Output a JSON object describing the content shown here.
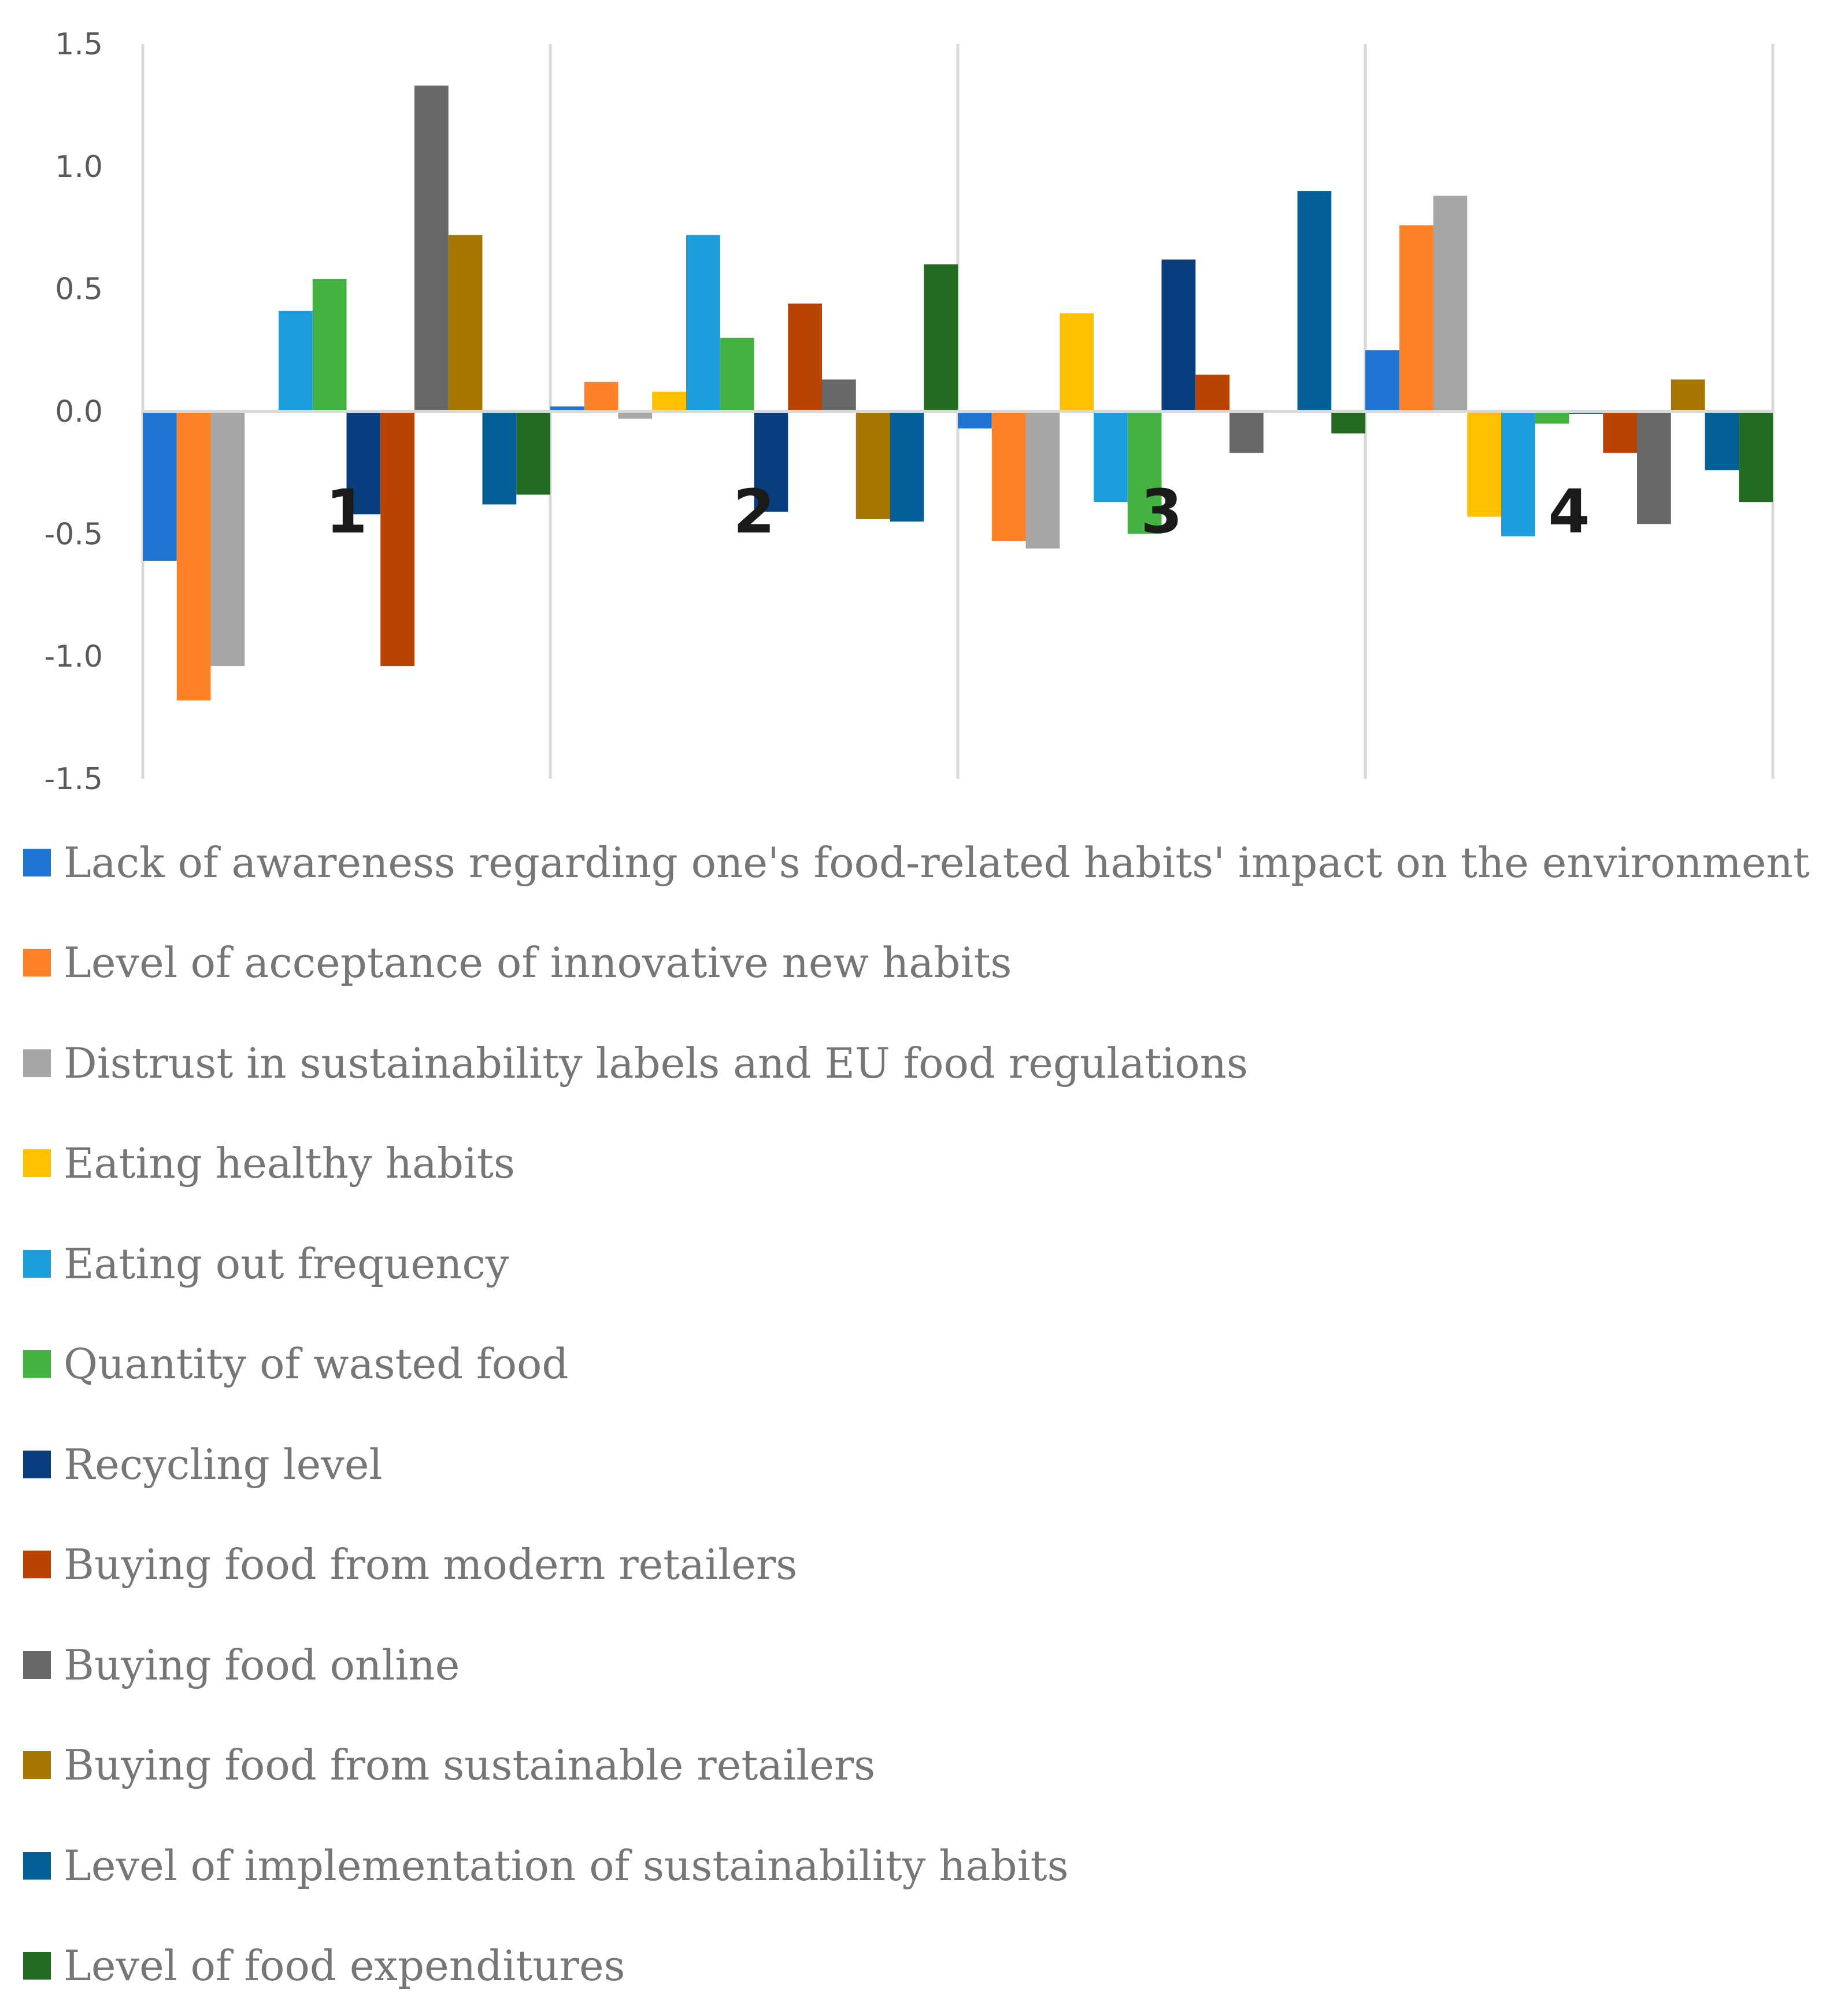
{
  "chart_data": {
    "type": "bar",
    "title": "",
    "xlabel": "",
    "ylabel": "",
    "ylim": [
      -1.5,
      1.5
    ],
    "yticks": [
      "1.5",
      "1.0",
      "0.5",
      "0.0",
      "-0.5",
      "-1.0",
      "-1.5"
    ],
    "ytick_values": [
      1.5,
      1.0,
      0.5,
      0.0,
      -0.5,
      -1.0,
      -1.5
    ],
    "categories": [
      "1",
      "2",
      "3",
      "4"
    ],
    "grid": "vertical separators between clusters",
    "legend_position": "bottom",
    "series": [
      {
        "name": "Lack of awareness regarding one's food-related habits' impact on the environment",
        "color": "#1f74d1",
        "values": [
          -0.61,
          0.02,
          -0.07,
          0.25
        ]
      },
      {
        "name": "Level of acceptance of innovative new habits",
        "color": "#ff8128",
        "values": [
          -1.18,
          0.12,
          -0.53,
          0.76
        ]
      },
      {
        "name": "Distrust in sustainability labels and EU food regulations",
        "color": "#a6a6a6",
        "values": [
          -1.04,
          -0.03,
          -0.56,
          0.88
        ]
      },
      {
        "name": "Eating healthy habits",
        "color": "#ffc000",
        "values": [
          0.0,
          0.08,
          0.4,
          -0.43
        ]
      },
      {
        "name": "Eating out frequency",
        "color": "#1e9ddc",
        "values": [
          0.41,
          0.72,
          -0.37,
          -0.51
        ]
      },
      {
        "name": "Quantity of wasted food",
        "color": "#44b240",
        "values": [
          0.54,
          0.3,
          -0.5,
          -0.05
        ]
      },
      {
        "name": "Recycling level",
        "color": "#083d7e",
        "values": [
          -0.42,
          -0.41,
          0.62,
          -0.01
        ]
      },
      {
        "name": "Buying food from modern retailers",
        "color": "#b84400",
        "values": [
          -1.04,
          0.44,
          0.15,
          -0.17
        ]
      },
      {
        "name": "Buying food online",
        "color": "#676767",
        "values": [
          1.33,
          0.13,
          -0.17,
          -0.46
        ]
      },
      {
        "name": "Buying food from sustainable retailers",
        "color": "#a67700",
        "values": [
          0.72,
          -0.44,
          0.0,
          0.13
        ]
      },
      {
        "name": "Level of implementation of sustainability habits",
        "color": "#045f96",
        "values": [
          -0.38,
          -0.45,
          0.9,
          -0.24
        ]
      },
      {
        "name": "Level of food expenditures",
        "color": "#236b22",
        "values": [
          -0.34,
          0.6,
          -0.09,
          -0.37
        ]
      }
    ]
  }
}
